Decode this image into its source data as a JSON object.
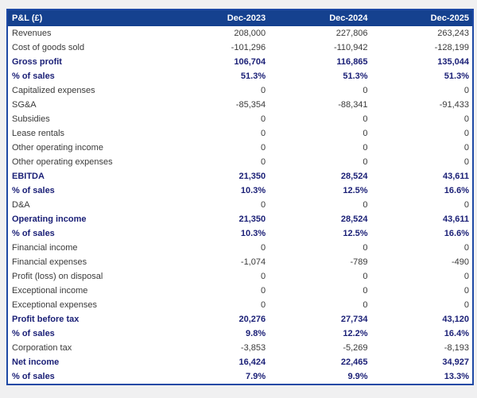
{
  "page": {
    "background_color": "#f0f0f1"
  },
  "colors": {
    "header_bg": "#15418f",
    "header_text": "#ffffff",
    "border": "#1e49a5",
    "bold_row_text": "#1b2077",
    "body_text": "#3a3a3a",
    "body_bg": "#ffffff"
  },
  "chart_data": {
    "type": "table",
    "title": "P&L (£)",
    "columns": [
      "Dec-2023",
      "Dec-2024",
      "Dec-2025"
    ],
    "rows": [
      {
        "label": "Revenues",
        "values": [
          "208,000",
          "227,806",
          "263,243"
        ],
        "bold": false
      },
      {
        "label": "Cost of goods sold",
        "values": [
          "-101,296",
          "-110,942",
          "-128,199"
        ],
        "bold": false
      },
      {
        "label": "Gross profit",
        "values": [
          "106,704",
          "116,865",
          "135,044"
        ],
        "bold": true
      },
      {
        "label": "% of sales",
        "values": [
          "51.3%",
          "51.3%",
          "51.3%"
        ],
        "bold": true
      },
      {
        "label": "Capitalized expenses",
        "values": [
          "0",
          "0",
          "0"
        ],
        "bold": false
      },
      {
        "label": "SG&A",
        "values": [
          "-85,354",
          "-88,341",
          "-91,433"
        ],
        "bold": false
      },
      {
        "label": "Subsidies",
        "values": [
          "0",
          "0",
          "0"
        ],
        "bold": false
      },
      {
        "label": "Lease rentals",
        "values": [
          "0",
          "0",
          "0"
        ],
        "bold": false
      },
      {
        "label": "Other operating income",
        "values": [
          "0",
          "0",
          "0"
        ],
        "bold": false
      },
      {
        "label": "Other operating expenses",
        "values": [
          "0",
          "0",
          "0"
        ],
        "bold": false
      },
      {
        "label": "EBITDA",
        "values": [
          "21,350",
          "28,524",
          "43,611"
        ],
        "bold": true
      },
      {
        "label": "% of sales",
        "values": [
          "10.3%",
          "12.5%",
          "16.6%"
        ],
        "bold": true
      },
      {
        "label": "D&A",
        "values": [
          "0",
          "0",
          "0"
        ],
        "bold": false
      },
      {
        "label": "Operating income",
        "values": [
          "21,350",
          "28,524",
          "43,611"
        ],
        "bold": true
      },
      {
        "label": "% of sales",
        "values": [
          "10.3%",
          "12.5%",
          "16.6%"
        ],
        "bold": true
      },
      {
        "label": "Financial income",
        "values": [
          "0",
          "0",
          "0"
        ],
        "bold": false
      },
      {
        "label": "Financial expenses",
        "values": [
          "-1,074",
          "-789",
          "-490"
        ],
        "bold": false
      },
      {
        "label": "Profit (loss) on disposal",
        "values": [
          "0",
          "0",
          "0"
        ],
        "bold": false
      },
      {
        "label": "Exceptional income",
        "values": [
          "0",
          "0",
          "0"
        ],
        "bold": false
      },
      {
        "label": "Exceptional expenses",
        "values": [
          "0",
          "0",
          "0"
        ],
        "bold": false
      },
      {
        "label": "Profit before tax",
        "values": [
          "20,276",
          "27,734",
          "43,120"
        ],
        "bold": true
      },
      {
        "label": "% of sales",
        "values": [
          "9.8%",
          "12.2%",
          "16.4%"
        ],
        "bold": true
      },
      {
        "label": "Corporation tax",
        "values": [
          "-3,853",
          "-5,269",
          "-8,193"
        ],
        "bold": false
      },
      {
        "label": "Net income",
        "values": [
          "16,424",
          "22,465",
          "34,927"
        ],
        "bold": true
      },
      {
        "label": "% of sales",
        "values": [
          "7.9%",
          "9.9%",
          "13.3%"
        ],
        "bold": true
      }
    ]
  }
}
